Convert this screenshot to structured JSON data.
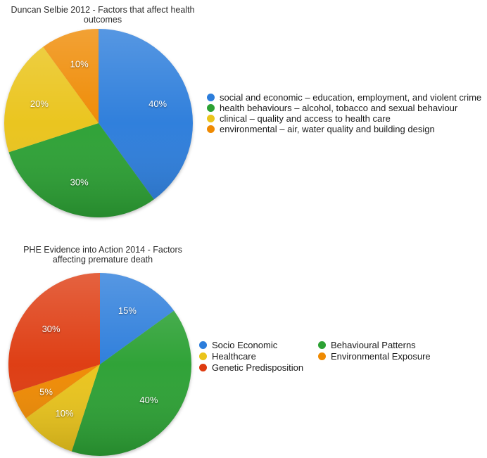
{
  "background": "#ffffff",
  "chart_data": [
    {
      "type": "pie",
      "title": "Duncan Selbie 2012 - Factors that affect health outcomes",
      "title_lines": [
        "Duncan Selbie 2012 - Factors that affect health",
        "outcomes"
      ],
      "labels": [
        "social and economic – education, employment, and violent crime",
        "health behaviours – alcohol, tobacco and sexual behaviour",
        "clinical – quality and access to health care",
        "environmental – air, water quality and building design"
      ],
      "values": [
        40,
        30,
        20,
        10
      ],
      "value_labels": [
        "40%",
        "30%",
        "20%",
        "10%"
      ],
      "colors": [
        "#2C7DDB",
        "#2CA134",
        "#EAC41B",
        "#EF8A02"
      ],
      "label_color": "#ffffff",
      "start_angle_deg": 0,
      "direction": "clockwise",
      "legend_position": "right",
      "legend_columns": 1
    },
    {
      "type": "pie",
      "title": "PHE Evidence into Action 2014 - Factors affecting premature death",
      "title_lines": [
        "PHE Evidence into Action 2014 - Factors",
        "affecting premature death"
      ],
      "labels": [
        "Socio Economic",
        "Behavioural Patterns",
        "Healthcare",
        "Environmental Exposure",
        "Genetic Predisposition"
      ],
      "values": [
        15,
        40,
        10,
        5,
        30
      ],
      "value_labels": [
        "15%",
        "40%",
        "10%",
        "5%",
        "30%"
      ],
      "colors": [
        "#2C7DDB",
        "#2CA134",
        "#EAC41B",
        "#EF8A02",
        "#DE3B10"
      ],
      "label_color": "#ffffff",
      "start_angle_deg": 0,
      "direction": "clockwise",
      "legend_position": "right",
      "legend_columns": 2
    }
  ]
}
